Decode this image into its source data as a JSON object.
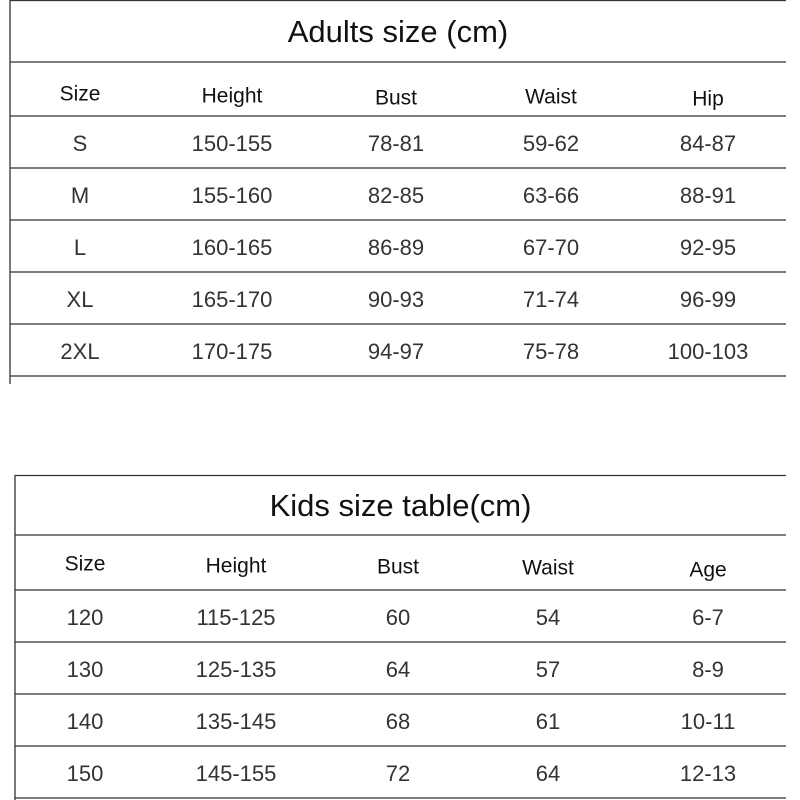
{
  "adults": {
    "title": "Adults size (cm)",
    "header": [
      "Size",
      "Height",
      "Bust",
      "Waist",
      "Hip"
    ],
    "rows": [
      [
        "S",
        "150-155",
        "78-81",
        "59-62",
        "84-87"
      ],
      [
        "M",
        "155-160",
        "82-85",
        "63-66",
        "88-91"
      ],
      [
        "L",
        "160-165",
        "86-89",
        "67-70",
        "92-95"
      ],
      [
        "XL",
        "165-170",
        "90-93",
        "71-74",
        "96-99"
      ],
      [
        "2XL",
        "170-175",
        "94-97",
        "75-78",
        "100-103"
      ]
    ]
  },
  "kids": {
    "title": "Kids size table(cm)",
    "header": [
      "Size",
      "Height",
      "Bust",
      "Waist",
      "Age"
    ],
    "rows": [
      [
        "120",
        "115-125",
        "60",
        "54",
        "6-7"
      ],
      [
        "130",
        "125-135",
        "64",
        "57",
        "8-9"
      ],
      [
        "140",
        "135-145",
        "68",
        "61",
        "10-11"
      ],
      [
        "150",
        "145-155",
        "72",
        "64",
        "12-13"
      ]
    ]
  }
}
